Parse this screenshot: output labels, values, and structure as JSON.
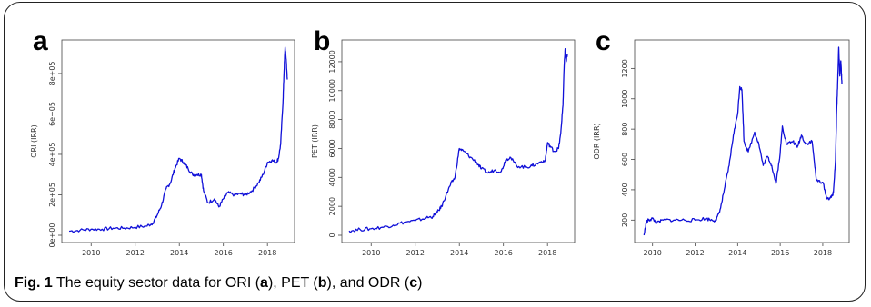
{
  "caption": {
    "label": "Fig. 1",
    "text_1": " The equity sector data for ORI (",
    "ref_a": "a",
    "text_2": "), PET (",
    "ref_b": "b",
    "text_3": "), and ODR (",
    "ref_c": "c",
    "text_4": ")"
  },
  "chart_data": [
    {
      "type": "line",
      "panel_label": "a",
      "title": "",
      "xlabel": "",
      "ylabel": "ORI (IRR)",
      "xlim": [
        2009.0,
        2018.9
      ],
      "ylim": [
        0,
        930000
      ],
      "x_ticks": [
        2010,
        2012,
        2014,
        2016,
        2018
      ],
      "x_tick_labels": [
        "2010",
        "2012",
        "2014",
        "2016",
        "2018"
      ],
      "y_ticks": [
        0,
        200000,
        400000,
        600000,
        800000
      ],
      "y_tick_labels": [
        "0e+00",
        "2e+05",
        "4e+05",
        "6e+05",
        "8e+05"
      ],
      "series": [
        {
          "color": "#1010d8",
          "x": [
            2009.0,
            2009.5,
            2010.0,
            2010.5,
            2011.0,
            2011.5,
            2012.0,
            2012.5,
            2012.8,
            2013.0,
            2013.2,
            2013.4,
            2013.6,
            2013.8,
            2014.0,
            2014.2,
            2014.4,
            2014.6,
            2014.8,
            2015.0,
            2015.1,
            2015.3,
            2015.6,
            2015.8,
            2016.0,
            2016.2,
            2016.5,
            2016.8,
            2017.0,
            2017.3,
            2017.6,
            2017.8,
            2018.0,
            2018.2,
            2018.4,
            2018.5,
            2018.6,
            2018.7,
            2018.75,
            2018.8,
            2018.85,
            2018.9
          ],
          "y": [
            20000,
            25000,
            30000,
            30000,
            35000,
            35000,
            40000,
            45000,
            60000,
            100000,
            150000,
            230000,
            260000,
            330000,
            380000,
            360000,
            330000,
            300000,
            300000,
            300000,
            220000,
            160000,
            180000,
            140000,
            180000,
            210000,
            200000,
            205000,
            200000,
            220000,
            260000,
            300000,
            360000,
            370000,
            360000,
            380000,
            450000,
            650000,
            800000,
            930000,
            870000,
            770000
          ]
        }
      ]
    },
    {
      "type": "line",
      "panel_label": "b",
      "title": "",
      "xlabel": "",
      "ylabel": "PET (IRR)",
      "xlim": [
        2009.0,
        2018.9
      ],
      "ylim": [
        0,
        13000
      ],
      "x_ticks": [
        2010,
        2012,
        2014,
        2016,
        2018
      ],
      "x_tick_labels": [
        "2010",
        "2012",
        "2014",
        "2016",
        "2018"
      ],
      "y_ticks": [
        0,
        2000,
        4000,
        6000,
        8000,
        10000,
        12000
      ],
      "y_tick_labels": [
        "0",
        "2000",
        "4000",
        "6000",
        "8000",
        "10000",
        "12000"
      ],
      "series": [
        {
          "color": "#1010d8",
          "x": [
            2009.0,
            2009.5,
            2010.0,
            2010.5,
            2011.0,
            2011.5,
            2012.0,
            2012.5,
            2012.8,
            2013.0,
            2013.2,
            2013.4,
            2013.6,
            2013.8,
            2014.0,
            2014.2,
            2014.5,
            2014.8,
            2015.0,
            2015.3,
            2015.6,
            2015.9,
            2016.1,
            2016.3,
            2016.6,
            2017.0,
            2017.3,
            2017.6,
            2017.9,
            2018.0,
            2018.1,
            2018.3,
            2018.5,
            2018.6,
            2018.7,
            2018.75,
            2018.8,
            2018.85,
            2018.9
          ],
          "y": [
            300,
            400,
            450,
            550,
            700,
            900,
            1000,
            1200,
            1300,
            1600,
            2000,
            2800,
            3500,
            4000,
            6000,
            5800,
            5400,
            5000,
            4600,
            4300,
            4500,
            4400,
            5200,
            5400,
            4800,
            4700,
            4800,
            5000,
            5200,
            6400,
            6200,
            5800,
            6000,
            7000,
            9000,
            11500,
            12900,
            12000,
            12500
          ]
        }
      ]
    },
    {
      "type": "line",
      "panel_label": "c",
      "title": "",
      "xlabel": "",
      "ylabel": "ODR (IRR)",
      "xlim": [
        2009.5,
        2018.9
      ],
      "ylim": [
        100,
        1340
      ],
      "x_ticks": [
        2010,
        2012,
        2014,
        2016,
        2018
      ],
      "x_tick_labels": [
        "2010",
        "2012",
        "2014",
        "2016",
        "2018"
      ],
      "y_ticks": [
        200,
        400,
        600,
        800,
        1000,
        1200
      ],
      "y_tick_labels": [
        "200",
        "400",
        "600",
        "800",
        "1000",
        "1200"
      ],
      "series": [
        {
          "color": "#1010d8",
          "x": [
            2009.6,
            2009.7,
            2009.8,
            2010.0,
            2010.2,
            2010.5,
            2011.0,
            2011.5,
            2012.0,
            2012.5,
            2012.8,
            2013.0,
            2013.2,
            2013.4,
            2013.6,
            2013.8,
            2014.0,
            2014.1,
            2014.2,
            2014.3,
            2014.5,
            2014.8,
            2015.0,
            2015.2,
            2015.4,
            2015.6,
            2015.8,
            2016.0,
            2016.1,
            2016.3,
            2016.6,
            2016.8,
            2017.0,
            2017.2,
            2017.5,
            2017.7,
            2018.0,
            2018.2,
            2018.4,
            2018.5,
            2018.6,
            2018.65,
            2018.7,
            2018.75,
            2018.8,
            2018.85,
            2018.9
          ],
          "y": [
            100,
            180,
            200,
            210,
            180,
            200,
            200,
            200,
            200,
            210,
            200,
            200,
            280,
            420,
            560,
            760,
            900,
            1080,
            1060,
            720,
            650,
            780,
            700,
            560,
            620,
            560,
            440,
            640,
            820,
            700,
            720,
            680,
            760,
            700,
            720,
            460,
            450,
            340,
            350,
            380,
            600,
            900,
            1100,
            1340,
            1150,
            1250,
            1100
          ]
        }
      ]
    }
  ]
}
